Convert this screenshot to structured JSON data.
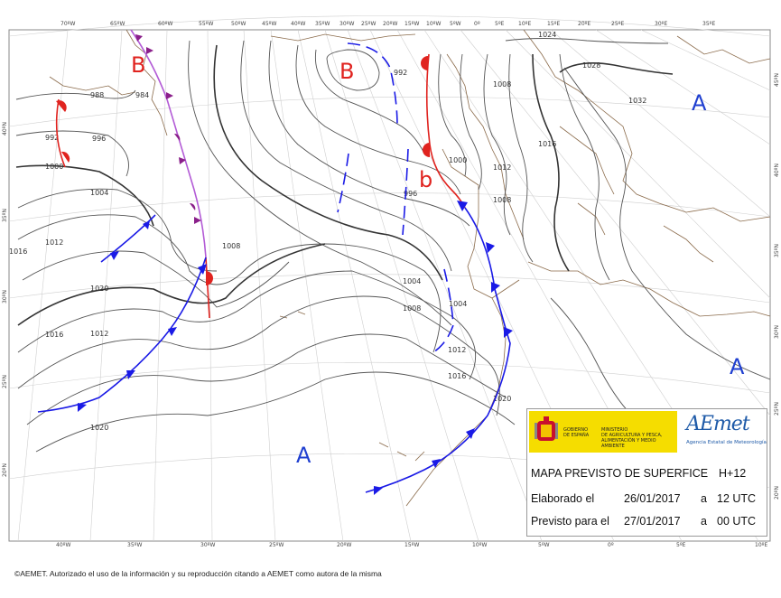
{
  "map": {
    "lon_labels_top": [
      "70ºW",
      "65ºW",
      "60ºW",
      "55ºW",
      "50ºW",
      "45ºW",
      "40ºW",
      "35ºW",
      "30ºW",
      "25ºW",
      "20ºW",
      "15ºW",
      "10ºW",
      "5ºW",
      "0º",
      "5ºE",
      "10ºE",
      "15ºE",
      "20ºE",
      "25ºE",
      "30ºE",
      "35ºE"
    ],
    "lon_labels_bottom": [
      "40ºW",
      "35ºW",
      "30ºW",
      "25ºW",
      "20ºW",
      "15ºW",
      "10ºW",
      "5ºW",
      "0º",
      "5ºE",
      "10ºE"
    ],
    "lat_labels_left": [
      "40ºN",
      "35ºN",
      "30ºN",
      "25ºN",
      "20ºN"
    ],
    "lat_labels_right": [
      "45ºN",
      "40ºN",
      "35ºN",
      "30ºN",
      "25ºN",
      "20ºN"
    ],
    "isobar_labels": [
      "988",
      "984",
      "992",
      "996",
      "1000",
      "1004",
      "1008",
      "1012",
      "1016",
      "1020",
      "992",
      "996",
      "1000",
      "1004",
      "1008",
      "1004",
      "1012",
      "1016",
      "1020",
      "1016",
      "1020",
      "1012",
      "1008",
      "1024",
      "1028",
      "1032",
      "1008",
      "1012",
      "1016"
    ],
    "pressure_centers": [
      {
        "label": "B",
        "kind": "low",
        "color": "#e0231f"
      },
      {
        "label": "B",
        "kind": "low",
        "color": "#e0231f"
      },
      {
        "label": "b",
        "kind": "low",
        "color": "#e0231f"
      },
      {
        "label": "A",
        "kind": "high",
        "color": "#1f3fd0"
      },
      {
        "label": "A",
        "kind": "high",
        "color": "#1f3fd0"
      },
      {
        "label": "A",
        "kind": "high",
        "color": "#1f3fd0"
      }
    ],
    "colors": {
      "cold_front": "#1a1ae6",
      "warm_front": "#e0231f",
      "occluded_front": "#a01fa0",
      "isobar": "#555555",
      "coast": "#8a6a4a",
      "graticule": "#c8c8c8"
    }
  },
  "legend": {
    "gov_line1": "GOBIERNO\nDE ESPAÑA",
    "gov_line2": "MINISTERIO\nDE AGRICULTURA Y PESCA,\nALIMENTACIÓN Y MEDIO AMBIENTE",
    "aemet_name": "AEmet",
    "aemet_sub": "Agencia Estatal de Meteorología",
    "title": "MAPA PREVISTO DE SUPERFICE",
    "horizon": "H+12",
    "made_label": "Elaborado el",
    "made_date": "26/01/2017",
    "made_sep": "a",
    "made_time": "12 UTC",
    "valid_label": "Previsto para el",
    "valid_date": "27/01/2017",
    "valid_sep": "a",
    "valid_time": "00 UTC"
  },
  "footer": {
    "copyright": "©AEMET. Autorizado el uso de la información y su reproducción citando a AEMET como autora de la misma"
  }
}
